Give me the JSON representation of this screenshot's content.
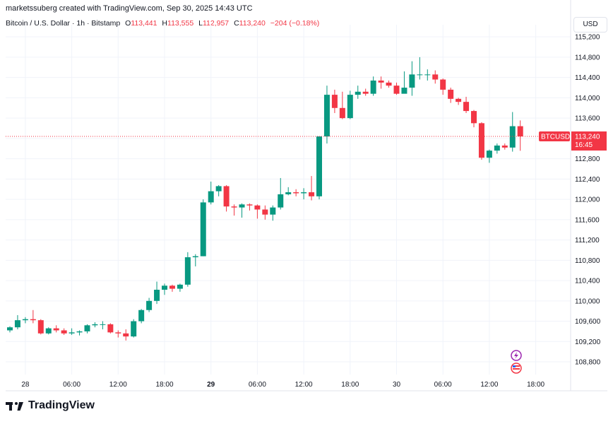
{
  "header": {
    "title": "marketssuberg created with TradingView.com, Sep 30, 2025 14:43 UTC"
  },
  "legend": {
    "symbol": "Bitcoin / U.S. Dollar · 1h · Bitstamp",
    "open_label": "O",
    "open": "113,441",
    "high_label": "H",
    "high": "113,555",
    "low_label": "L",
    "low": "112,957",
    "close_label": "C",
    "close": "113,240",
    "change": "−204 (−0.18%)"
  },
  "currency_button": "USD",
  "price_badge": {
    "symbol": "BTCUSD",
    "price": "113,240",
    "countdown": "16:45"
  },
  "footer": {
    "logo_text": "TradingView"
  },
  "colors": {
    "up": "#089981",
    "down": "#f23645",
    "grid": "#f0f3fa",
    "price_line": "#f23645"
  },
  "chart_data": {
    "type": "candlestick",
    "title": "Bitcoin / U.S. Dollar · 1h · Bitstamp",
    "xlabel": "",
    "ylabel": "",
    "y_ticks": [
      108800,
      109200,
      109600,
      110000,
      110400,
      110800,
      111200,
      111600,
      112000,
      112400,
      112800,
      113200,
      113600,
      114000,
      114400,
      114800,
      115200
    ],
    "y_tick_labels": [
      "108,800",
      "109,200",
      "109,600",
      "110,000",
      "110,400",
      "110,800",
      "111,200",
      "111,600",
      "112,000",
      "112,400",
      "112,800",
      "113,200",
      "113,600",
      "114,000",
      "114,400",
      "114,800",
      "115,200"
    ],
    "ylim": [
      108550,
      115300
    ],
    "x_ticks": [
      {
        "label": "28",
        "bold": false,
        "hour": 2
      },
      {
        "label": "06:00",
        "bold": false,
        "hour": 8
      },
      {
        "label": "12:00",
        "bold": false,
        "hour": 14
      },
      {
        "label": "18:00",
        "bold": false,
        "hour": 20
      },
      {
        "label": "29",
        "bold": true,
        "hour": 26
      },
      {
        "label": "06:00",
        "bold": false,
        "hour": 32
      },
      {
        "label": "12:00",
        "bold": false,
        "hour": 38
      },
      {
        "label": "18:00",
        "bold": false,
        "hour": 44
      },
      {
        "label": "30",
        "bold": false,
        "hour": 50
      },
      {
        "label": "06:00",
        "bold": false,
        "hour": 56
      },
      {
        "label": "12:00",
        "bold": false,
        "hour": 62
      },
      {
        "label": "18:00",
        "bold": false,
        "hour": 68
      }
    ],
    "current_price": 113240,
    "candles": [
      [
        109420,
        109480,
        109380,
        109500
      ],
      [
        109480,
        109620,
        109440,
        109720
      ],
      [
        109620,
        109640,
        109560,
        109680
      ],
      [
        109640,
        109620,
        109560,
        109820
      ],
      [
        109620,
        109360,
        109340,
        109640
      ],
      [
        109360,
        109460,
        109340,
        109480
      ],
      [
        109460,
        109420,
        109380,
        109520
      ],
      [
        109420,
        109360,
        109330,
        109460
      ],
      [
        109360,
        109380,
        109330,
        109460
      ],
      [
        109380,
        109400,
        109320,
        109420
      ],
      [
        109400,
        109520,
        109360,
        109540
      ],
      [
        109520,
        109540,
        109480,
        109580
      ],
      [
        109540,
        109540,
        109440,
        109600
      ],
      [
        109540,
        109380,
        109360,
        109560
      ],
      [
        109380,
        109360,
        109280,
        109420
      ],
      [
        109360,
        109300,
        109220,
        109440
      ],
      [
        109300,
        109600,
        109280,
        109640
      ],
      [
        109600,
        109820,
        109560,
        109840
      ],
      [
        109820,
        110000,
        109780,
        110060
      ],
      [
        110000,
        110220,
        109940,
        110380
      ],
      [
        110220,
        110300,
        110120,
        110340
      ],
      [
        110300,
        110240,
        110180,
        110320
      ],
      [
        110240,
        110320,
        110180,
        110340
      ],
      [
        110320,
        110860,
        110280,
        110960
      ],
      [
        110860,
        110880,
        110680,
        110920
      ],
      [
        110880,
        111940,
        110880,
        112000
      ],
      [
        111940,
        112160,
        111900,
        112350
      ],
      [
        112160,
        112260,
        112060,
        112280
      ],
      [
        112260,
        111860,
        111760,
        112280
      ],
      [
        111860,
        111840,
        111680,
        111900
      ],
      [
        111840,
        111900,
        111640,
        111920
      ],
      [
        111900,
        111880,
        111780,
        111920
      ],
      [
        111880,
        111800,
        111620,
        111900
      ],
      [
        111800,
        111700,
        111600,
        111880
      ],
      [
        111700,
        111840,
        111580,
        111880
      ],
      [
        111840,
        112100,
        111800,
        112420
      ],
      [
        112100,
        112140,
        112080,
        112240
      ],
      [
        112140,
        112120,
        112060,
        112200
      ],
      [
        112120,
        112140,
        112000,
        112220
      ],
      [
        112140,
        112060,
        111980,
        112460
      ],
      [
        112060,
        113240,
        112000,
        113240
      ],
      [
        113240,
        114060,
        113100,
        114240
      ],
      [
        114060,
        113800,
        113700,
        114160
      ],
      [
        113800,
        113600,
        113580,
        114120
      ],
      [
        113600,
        114060,
        113580,
        114140
      ],
      [
        114060,
        114120,
        113980,
        114240
      ],
      [
        114120,
        114080,
        114040,
        114180
      ],
      [
        114080,
        114340,
        114040,
        114420
      ],
      [
        114340,
        114300,
        114180,
        114420
      ],
      [
        114300,
        114240,
        114200,
        114340
      ],
      [
        114240,
        114080,
        114060,
        114300
      ],
      [
        114080,
        114200,
        114100,
        114520
      ],
      [
        114200,
        114460,
        114040,
        114720
      ],
      [
        114460,
        114460,
        114360,
        114800
      ],
      [
        114460,
        114460,
        114340,
        114560
      ],
      [
        114460,
        114360,
        114280,
        114540
      ],
      [
        114360,
        114160,
        114060,
        114380
      ],
      [
        114160,
        113980,
        113900,
        114200
      ],
      [
        113980,
        113920,
        113860,
        114000
      ],
      [
        113920,
        113740,
        113700,
        114020
      ],
      [
        113740,
        113500,
        113420,
        113760
      ],
      [
        113500,
        112820,
        112780,
        113520
      ],
      [
        112820,
        112960,
        112720,
        112980
      ],
      [
        112960,
        113060,
        112900,
        113100
      ],
      [
        113060,
        113020,
        112980,
        113100
      ],
      [
        113020,
        113441,
        112940,
        113720
      ],
      [
        113441,
        113240,
        112957,
        113555
      ]
    ]
  }
}
